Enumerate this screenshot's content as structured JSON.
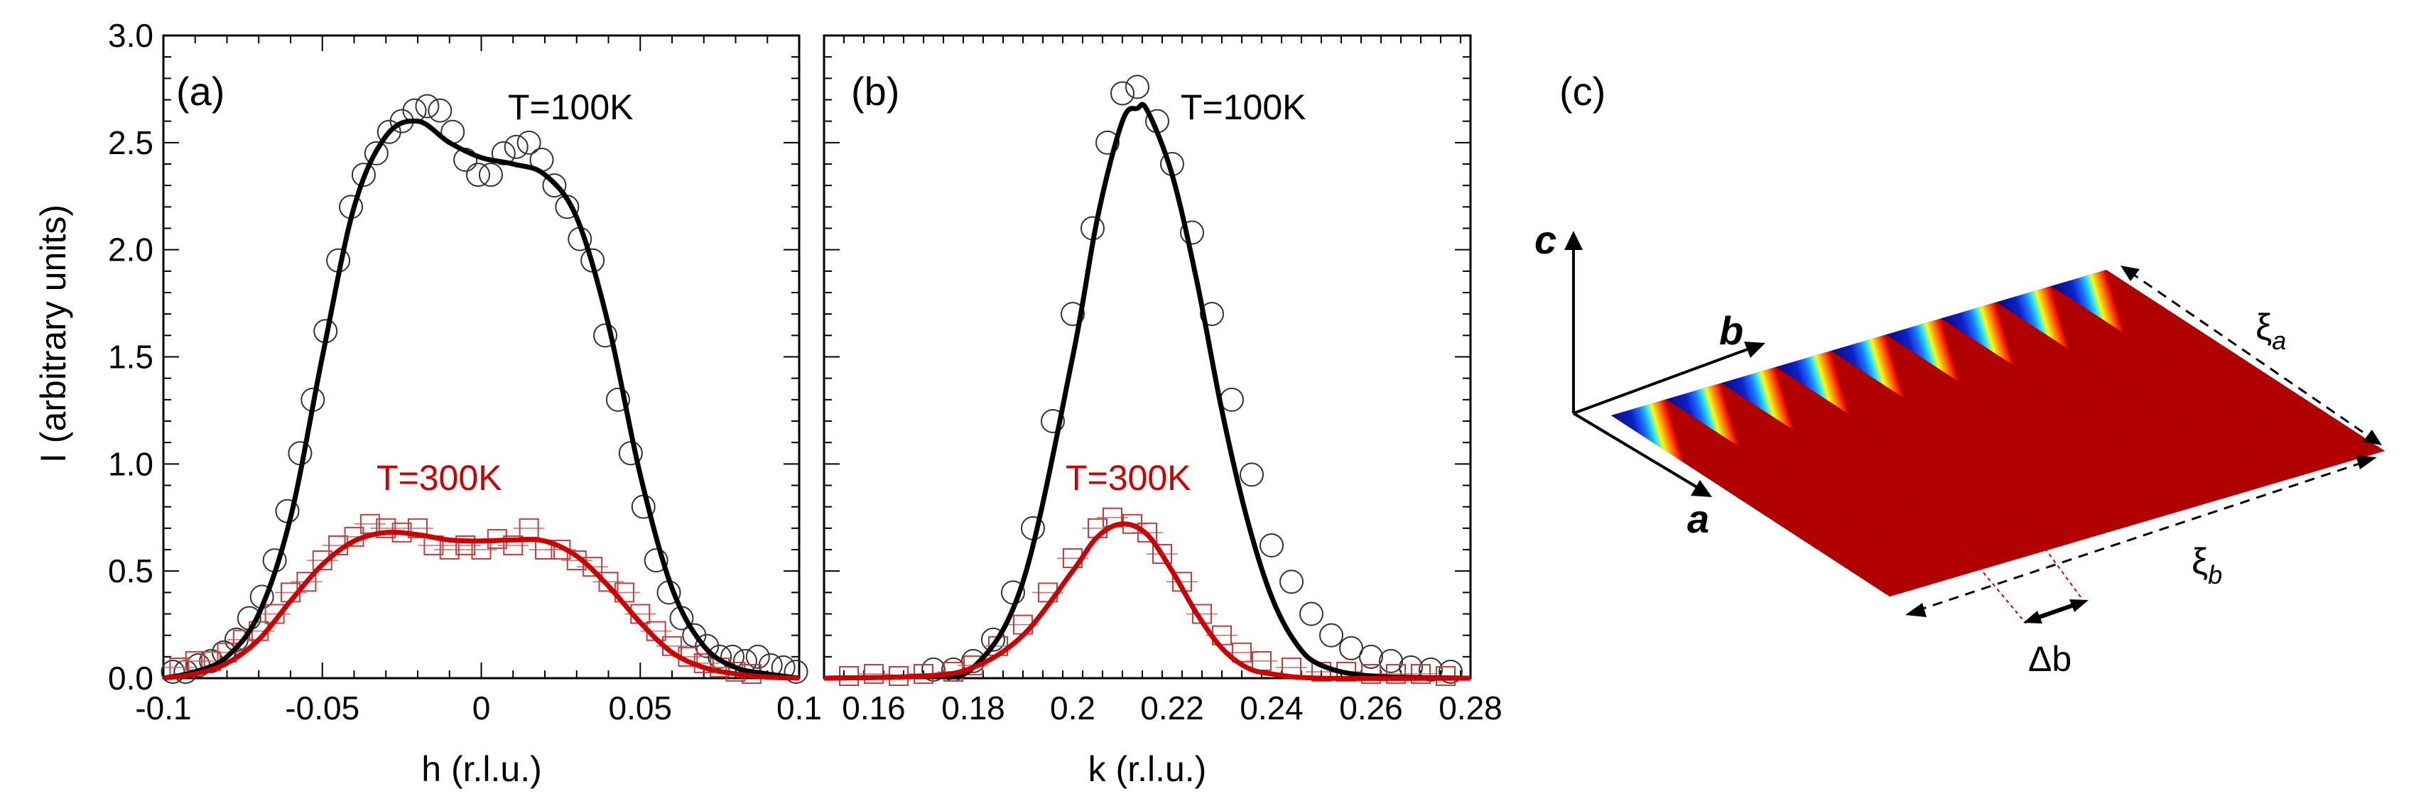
{
  "figure": {
    "ylabel": "I (arbitrary units)"
  },
  "chart_data": [
    {
      "panel": "(a)",
      "type": "scatter",
      "xlabel": "h (r.l.u.)",
      "ylabel": "I (arbitrary units)",
      "xlim": [
        -0.1,
        0.1
      ],
      "ylim": [
        0,
        3.0
      ],
      "xticks": [
        -0.1,
        -0.05,
        0,
        0.05,
        0.1
      ],
      "xtick_labels": [
        "-0.1",
        "-0.05",
        "0",
        "0.05",
        "0.1"
      ],
      "yticks": [
        0,
        0.5,
        1.0,
        1.5,
        2.0,
        2.5,
        3.0
      ],
      "ytick_labels": [
        "0.0",
        "0.5",
        "1.0",
        "1.5",
        "2.0",
        "2.5",
        "3.0"
      ],
      "series": [
        {
          "name": "T=100K",
          "label": "T=100K",
          "color": "#000000",
          "marker": "circle",
          "points": [
            [
              -0.097,
              0.03
            ],
            [
              -0.093,
              0.03
            ],
            [
              -0.089,
              0.06
            ],
            [
              -0.085,
              0.08
            ],
            [
              -0.081,
              0.12
            ],
            [
              -0.077,
              0.18
            ],
            [
              -0.073,
              0.28
            ],
            [
              -0.069,
              0.38
            ],
            [
              -0.065,
              0.55
            ],
            [
              -0.061,
              0.78
            ],
            [
              -0.057,
              1.05
            ],
            [
              -0.053,
              1.3
            ],
            [
              -0.049,
              1.62
            ],
            [
              -0.045,
              1.95
            ],
            [
              -0.041,
              2.2
            ],
            [
              -0.037,
              2.35
            ],
            [
              -0.033,
              2.45
            ],
            [
              -0.029,
              2.55
            ],
            [
              -0.025,
              2.6
            ],
            [
              -0.021,
              2.65
            ],
            [
              -0.017,
              2.67
            ],
            [
              -0.013,
              2.65
            ],
            [
              -0.009,
              2.55
            ],
            [
              -0.005,
              2.42
            ],
            [
              -0.001,
              2.35
            ],
            [
              0.003,
              2.35
            ],
            [
              0.007,
              2.45
            ],
            [
              0.011,
              2.48
            ],
            [
              0.015,
              2.5
            ],
            [
              0.019,
              2.42
            ],
            [
              0.023,
              2.3
            ],
            [
              0.027,
              2.2
            ],
            [
              0.031,
              2.05
            ],
            [
              0.035,
              1.95
            ],
            [
              0.039,
              1.6
            ],
            [
              0.043,
              1.3
            ],
            [
              0.047,
              1.05
            ],
            [
              0.051,
              0.8
            ],
            [
              0.055,
              0.55
            ],
            [
              0.059,
              0.4
            ],
            [
              0.063,
              0.28
            ],
            [
              0.067,
              0.2
            ],
            [
              0.071,
              0.15
            ],
            [
              0.075,
              0.1
            ],
            [
              0.079,
              0.1
            ],
            [
              0.083,
              0.08
            ],
            [
              0.087,
              0.1
            ],
            [
              0.091,
              0.06
            ],
            [
              0.095,
              0.05
            ],
            [
              0.099,
              0.03
            ]
          ],
          "fit": [
            [
              -0.1,
              0.0
            ],
            [
              -0.09,
              0.03
            ],
            [
              -0.08,
              0.1
            ],
            [
              -0.07,
              0.3
            ],
            [
              -0.06,
              0.75
            ],
            [
              -0.05,
              1.5
            ],
            [
              -0.04,
              2.2
            ],
            [
              -0.03,
              2.53
            ],
            [
              -0.02,
              2.6
            ],
            [
              -0.01,
              2.5
            ],
            [
              0.0,
              2.43
            ],
            [
              0.01,
              2.4
            ],
            [
              0.02,
              2.35
            ],
            [
              0.03,
              2.15
            ],
            [
              0.04,
              1.65
            ],
            [
              0.05,
              0.95
            ],
            [
              0.06,
              0.42
            ],
            [
              0.07,
              0.15
            ],
            [
              0.08,
              0.05
            ],
            [
              0.09,
              0.02
            ],
            [
              0.1,
              0.0
            ]
          ]
        },
        {
          "name": "T=300K",
          "label": "T=300K",
          "color": "#cc0000",
          "marker": "square",
          "points": [
            [
              -0.095,
              0.05
            ],
            [
              -0.09,
              0.08
            ],
            [
              -0.085,
              0.08
            ],
            [
              -0.08,
              0.12
            ],
            [
              -0.075,
              0.18
            ],
            [
              -0.07,
              0.22
            ],
            [
              -0.065,
              0.3
            ],
            [
              -0.06,
              0.4
            ],
            [
              -0.055,
              0.45
            ],
            [
              -0.05,
              0.55
            ],
            [
              -0.045,
              0.62
            ],
            [
              -0.04,
              0.66
            ],
            [
              -0.035,
              0.72
            ],
            [
              -0.03,
              0.7
            ],
            [
              -0.025,
              0.68
            ],
            [
              -0.02,
              0.7
            ],
            [
              -0.015,
              0.62
            ],
            [
              -0.01,
              0.6
            ],
            [
              -0.005,
              0.62
            ],
            [
              0.0,
              0.6
            ],
            [
              0.005,
              0.65
            ],
            [
              0.01,
              0.62
            ],
            [
              0.015,
              0.7
            ],
            [
              0.02,
              0.6
            ],
            [
              0.025,
              0.6
            ],
            [
              0.03,
              0.55
            ],
            [
              0.035,
              0.52
            ],
            [
              0.04,
              0.45
            ],
            [
              0.045,
              0.4
            ],
            [
              0.05,
              0.3
            ],
            [
              0.055,
              0.22
            ],
            [
              0.06,
              0.15
            ],
            [
              0.065,
              0.1
            ],
            [
              0.07,
              0.07
            ],
            [
              0.075,
              0.05
            ],
            [
              0.08,
              0.03
            ],
            [
              0.085,
              0.02
            ]
          ],
          "fit": [
            [
              -0.1,
              0.0
            ],
            [
              -0.09,
              0.02
            ],
            [
              -0.08,
              0.07
            ],
            [
              -0.07,
              0.18
            ],
            [
              -0.06,
              0.36
            ],
            [
              -0.05,
              0.53
            ],
            [
              -0.04,
              0.64
            ],
            [
              -0.03,
              0.68
            ],
            [
              -0.02,
              0.67
            ],
            [
              -0.01,
              0.645
            ],
            [
              0.0,
              0.64
            ],
            [
              0.01,
              0.645
            ],
            [
              0.02,
              0.64
            ],
            [
              0.03,
              0.57
            ],
            [
              0.04,
              0.43
            ],
            [
              0.05,
              0.26
            ],
            [
              0.06,
              0.12
            ],
            [
              0.07,
              0.05
            ],
            [
              0.08,
              0.02
            ],
            [
              0.09,
              0.005
            ],
            [
              0.1,
              0.0
            ]
          ]
        }
      ]
    },
    {
      "panel": "(b)",
      "type": "scatter",
      "xlabel": "k (r.l.u.)",
      "xlim": [
        0.15,
        0.28
      ],
      "ylim": [
        0,
        3.0
      ],
      "xticks": [
        0.16,
        0.18,
        0.2,
        0.22,
        0.24,
        0.26,
        0.28
      ],
      "xtick_labels": [
        "0.16",
        "0.18",
        "0.2",
        "0.22",
        "0.24",
        "0.26",
        "0.28"
      ],
      "series": [
        {
          "name": "T=100K",
          "label": "T=100K",
          "color": "#000000",
          "marker": "circle",
          "points": [
            [
              0.172,
              0.04
            ],
            [
              0.176,
              0.04
            ],
            [
              0.18,
              0.08
            ],
            [
              0.184,
              0.18
            ],
            [
              0.188,
              0.4
            ],
            [
              0.192,
              0.7
            ],
            [
              0.196,
              1.2
            ],
            [
              0.2,
              1.7
            ],
            [
              0.204,
              2.1
            ],
            [
              0.207,
              2.5
            ],
            [
              0.21,
              2.73
            ],
            [
              0.213,
              2.76
            ],
            [
              0.217,
              2.6
            ],
            [
              0.22,
              2.4
            ],
            [
              0.224,
              2.08
            ],
            [
              0.228,
              1.7
            ],
            [
              0.232,
              1.3
            ],
            [
              0.236,
              0.95
            ],
            [
              0.24,
              0.62
            ],
            [
              0.244,
              0.45
            ],
            [
              0.248,
              0.3
            ],
            [
              0.252,
              0.2
            ],
            [
              0.256,
              0.14
            ],
            [
              0.26,
              0.1
            ],
            [
              0.264,
              0.08
            ],
            [
              0.268,
              0.05
            ],
            [
              0.272,
              0.04
            ],
            [
              0.276,
              0.03
            ]
          ],
          "fit": [
            [
              0.15,
              0.0
            ],
            [
              0.17,
              0.01
            ],
            [
              0.18,
              0.05
            ],
            [
              0.19,
              0.45
            ],
            [
              0.2,
              1.5
            ],
            [
              0.205,
              2.15
            ],
            [
              0.21,
              2.6
            ],
            [
              0.213,
              2.66
            ],
            [
              0.215,
              2.65
            ],
            [
              0.22,
              2.35
            ],
            [
              0.225,
              1.85
            ],
            [
              0.23,
              1.25
            ],
            [
              0.235,
              0.75
            ],
            [
              0.24,
              0.38
            ],
            [
              0.245,
              0.16
            ],
            [
              0.25,
              0.06
            ],
            [
              0.26,
              0.01
            ],
            [
              0.28,
              0.0
            ]
          ]
        },
        {
          "name": "T=300K",
          "label": "T=300K",
          "color": "#cc0000",
          "marker": "square",
          "points": [
            [
              0.155,
              0.01
            ],
            [
              0.16,
              0.02
            ],
            [
              0.165,
              0.01
            ],
            [
              0.17,
              0.02
            ],
            [
              0.176,
              0.03
            ],
            [
              0.18,
              0.06
            ],
            [
              0.185,
              0.15
            ],
            [
              0.19,
              0.25
            ],
            [
              0.195,
              0.4
            ],
            [
              0.2,
              0.56
            ],
            [
              0.205,
              0.7
            ],
            [
              0.208,
              0.75
            ],
            [
              0.212,
              0.72
            ],
            [
              0.215,
              0.68
            ],
            [
              0.218,
              0.58
            ],
            [
              0.222,
              0.45
            ],
            [
              0.226,
              0.3
            ],
            [
              0.23,
              0.2
            ],
            [
              0.234,
              0.12
            ],
            [
              0.238,
              0.08
            ],
            [
              0.244,
              0.05
            ],
            [
              0.25,
              0.03
            ],
            [
              0.255,
              0.03
            ],
            [
              0.26,
              0.02
            ],
            [
              0.265,
              0.02
            ],
            [
              0.27,
              0.02
            ],
            [
              0.275,
              0.01
            ]
          ],
          "fit": [
            [
              0.15,
              0.0
            ],
            [
              0.17,
              0.01
            ],
            [
              0.18,
              0.05
            ],
            [
              0.19,
              0.2
            ],
            [
              0.2,
              0.5
            ],
            [
              0.205,
              0.66
            ],
            [
              0.21,
              0.72
            ],
            [
              0.215,
              0.67
            ],
            [
              0.22,
              0.5
            ],
            [
              0.225,
              0.3
            ],
            [
              0.23,
              0.14
            ],
            [
              0.235,
              0.05
            ],
            [
              0.24,
              0.02
            ],
            [
              0.25,
              0.0
            ],
            [
              0.28,
              0.0
            ]
          ]
        }
      ]
    },
    {
      "panel": "(c)",
      "type": "other",
      "description_labels": {
        "axis_c": "c",
        "axis_b": "b",
        "axis_a": "a",
        "xi_a": "ξ",
        "xi_a_sub": "a",
        "xi_b": "ξ",
        "xi_b_sub": "b",
        "delta_b": "Δb"
      },
      "colormap": [
        "#00008b",
        "#0000ff",
        "#00ffff",
        "#ffff00",
        "#ff0000"
      ]
    }
  ]
}
